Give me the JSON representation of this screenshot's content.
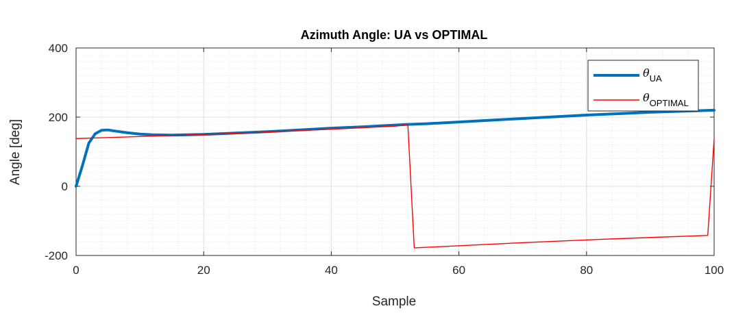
{
  "chart_data": {
    "type": "line",
    "title": "Azimuth Angle: UA vs OPTIMAL",
    "xlabel": "Sample",
    "ylabel": "Angle [deg]",
    "xlim": [
      0,
      100
    ],
    "ylim": [
      -200,
      400
    ],
    "xticks": [
      0,
      20,
      40,
      60,
      80,
      100
    ],
    "yticks": [
      -200,
      0,
      200,
      400
    ],
    "grid": "major and minor",
    "legend_position": "top-right",
    "series": [
      {
        "name_symbol": "θ",
        "name_subscript": "UA",
        "color": "#0072BD",
        "x": [
          0,
          1,
          2,
          3,
          4,
          5,
          6,
          8,
          10,
          12,
          15,
          20,
          25,
          30,
          35,
          40,
          45,
          50,
          52,
          55,
          60,
          65,
          70,
          75,
          80,
          85,
          90,
          95,
          100
        ],
        "y": [
          0,
          60,
          125,
          152,
          162,
          163,
          160,
          155,
          151,
          149,
          148,
          150,
          154,
          158,
          163,
          168,
          172,
          177,
          179,
          181,
          186,
          191,
          196,
          201,
          206,
          210,
          214,
          217,
          220
        ]
      },
      {
        "name_symbol": "θ",
        "name_subscript": "OPTIMAL",
        "color": "#FF0000",
        "x": [
          0,
          10,
          20,
          30,
          40,
          50,
          52,
          53,
          60,
          70,
          80,
          90,
          99,
          100
        ],
        "y": [
          138,
          144,
          150,
          157,
          165,
          174,
          178,
          -178,
          -172,
          -163,
          -155,
          -148,
          -142,
          137
        ]
      }
    ]
  }
}
